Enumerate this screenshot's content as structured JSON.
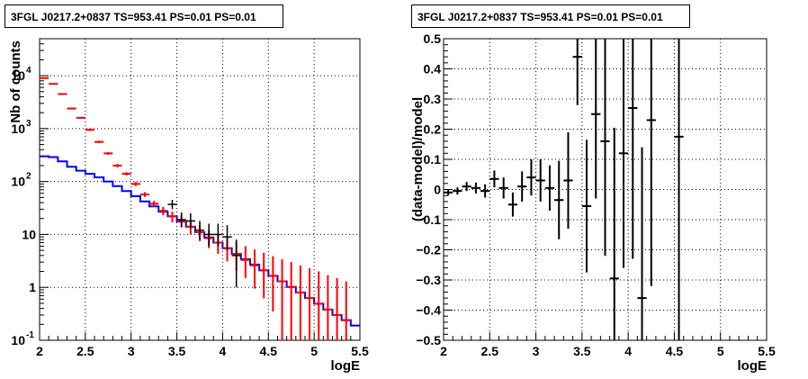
{
  "chart_data": [
    {
      "type": "histogram",
      "title": "3FGL J0217.2+0837 TS=953.41 PS=0.01 PS=0.01",
      "xlabel": "logE",
      "ylabel": "Nb of counts",
      "xlim": [
        2,
        5.5
      ],
      "ylim": [
        0.1,
        50000
      ],
      "yscale": "log",
      "grid": true,
      "x_ticks": [
        "2",
        "2.5",
        "3",
        "3.5",
        "4",
        "4.5",
        "5",
        "5.5"
      ],
      "y_ticks": [
        "10^4",
        "10^3",
        "10^2",
        "10",
        "1",
        "10^-1"
      ],
      "bin_edges": [
        2.0,
        2.1,
        2.2,
        2.3,
        2.4,
        2.5,
        2.6,
        2.7,
        2.8,
        2.9,
        3.0,
        3.1,
        3.2,
        3.3,
        3.4,
        3.5,
        3.6,
        3.7,
        3.8,
        3.9,
        4.0,
        4.1,
        4.2,
        4.3,
        4.4,
        4.5,
        4.6,
        4.7,
        4.8,
        4.9,
        5.0,
        5.1,
        5.2,
        5.3,
        5.4,
        5.5
      ],
      "series": [
        {
          "color": "#ff0000",
          "x": [
            2.05,
            2.15,
            2.25,
            2.35,
            2.45,
            2.55,
            2.65,
            2.75,
            2.85,
            2.95,
            3.05,
            3.15,
            3.25,
            3.35,
            3.45,
            3.55,
            3.65,
            3.75,
            3.85,
            3.95,
            4.05,
            4.15,
            4.25,
            4.35,
            4.45,
            4.55,
            4.65,
            4.75,
            4.85,
            4.95,
            5.05,
            5.15,
            5.25,
            5.35
          ],
          "values": [
            9000,
            7000,
            4500,
            2400,
            1600,
            950,
            560,
            340,
            200,
            140,
            90,
            57,
            38,
            28,
            22,
            18,
            14,
            11,
            8.5,
            7,
            5.5,
            4.3,
            3.3,
            2.6,
            2.1,
            1.65,
            1.3,
            1.02,
            0.8,
            0.63,
            0.49,
            0.38,
            0.3,
            0.24
          ],
          "err_low": [
            8750,
            6800,
            4350,
            2300,
            1540,
            900,
            530,
            320,
            185,
            130,
            82,
            51,
            33,
            23,
            17,
            13.5,
            10,
            7.5,
            5.5,
            4.3,
            3.1,
            2.1,
            1.5,
            0.95,
            0.62,
            0.35,
            0.1,
            0.1,
            0.1,
            0.1,
            0.1,
            0.1,
            0.1,
            0.1
          ],
          "err_high": [
            9300,
            7200,
            4650,
            2500,
            1660,
            1000,
            590,
            360,
            215,
            150,
            98,
            63,
            43,
            33,
            27,
            23,
            18.5,
            15,
            12,
            10,
            8.5,
            7.2,
            6,
            5.2,
            4.5,
            3.9,
            3.4,
            3,
            2.6,
            2.3,
            2,
            1.7,
            1.5,
            1.3
          ]
        },
        {
          "color": "#000000",
          "x": [
            3.45,
            3.55,
            3.65,
            3.75,
            3.85,
            3.95,
            4.05,
            4.15
          ],
          "values": [
            37,
            19,
            18,
            12,
            10,
            10,
            9,
            4
          ],
          "err_low": [
            30,
            14,
            13,
            8,
            6,
            6,
            5,
            1
          ],
          "err_high": [
            45,
            26,
            25,
            18,
            16,
            16,
            15,
            8
          ]
        },
        {
          "color": "#0000ff",
          "drawstyle": "steps",
          "values": [
            300,
            290,
            240,
            190,
            160,
            140,
            120,
            100,
            82,
            66,
            53,
            42,
            34,
            27,
            22,
            17.5,
            14,
            11,
            8.8,
            7,
            5.5,
            4.3,
            3.4,
            2.7,
            2.1,
            1.65,
            1.3,
            1.02,
            0.8,
            0.63,
            0.49,
            0.38,
            0.3,
            0.24,
            0.19
          ]
        }
      ]
    },
    {
      "type": "scatter",
      "title": "3FGL J0217.2+0837 TS=953.41 PS=0.01 PS=0.01",
      "xlabel": "logE",
      "ylabel": "(data-model)/model",
      "xlim": [
        2,
        5.5
      ],
      "ylim": [
        -0.5,
        0.5
      ],
      "grid": true,
      "x_ticks": [
        "2",
        "2.5",
        "3",
        "3.5",
        "4",
        "4.5",
        "5",
        "5.5"
      ],
      "y_ticks": [
        "0.5",
        "0.4",
        "0.3",
        "0.2",
        "0.1",
        "0",
        "−0.1",
        "−0.2",
        "−0.3",
        "−0.4",
        "−0.5"
      ],
      "series": [
        {
          "color": "#000000",
          "x": [
            2.05,
            2.15,
            2.25,
            2.35,
            2.45,
            2.55,
            2.65,
            2.75,
            2.85,
            2.95,
            3.05,
            3.15,
            3.25,
            3.35,
            3.45,
            3.55,
            3.65,
            3.75,
            3.85,
            3.95,
            4.05,
            4.15,
            4.25,
            4.55
          ],
          "values": [
            -0.01,
            -0.005,
            0.01,
            0.005,
            -0.005,
            0.035,
            0.005,
            -0.05,
            0.01,
            0.04,
            0.03,
            0.005,
            -0.035,
            0.03,
            0.44,
            -0.055,
            0.25,
            0.16,
            -0.295,
            0.12,
            0.27,
            -0.36,
            0.23,
            0.175
          ],
          "err": [
            0.01,
            0.012,
            0.015,
            0.018,
            0.022,
            0.028,
            0.035,
            0.04,
            0.05,
            0.06,
            0.07,
            0.075,
            0.13,
            0.16,
            0.16,
            0.22,
            0.28,
            0.38,
            0.5,
            0.38,
            0.5,
            0.5,
            0.55,
            0.7
          ]
        }
      ]
    }
  ]
}
